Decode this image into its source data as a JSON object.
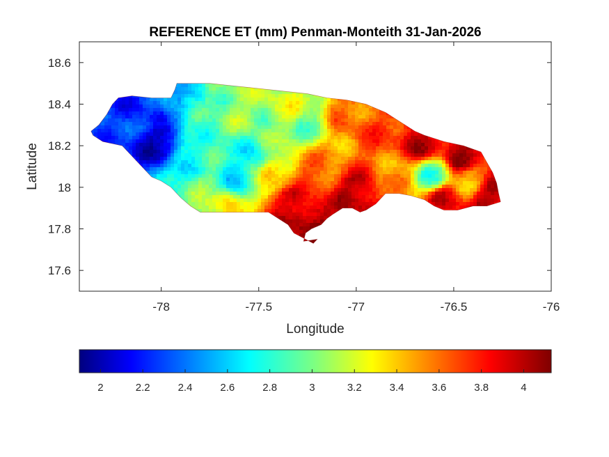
{
  "chart_data": {
    "type": "heatmap",
    "title": "REFERENCE ET (mm) Penman-Monteith 31-Jan-2026",
    "xlabel": "Longitude",
    "ylabel": "Latitude",
    "xlim": [
      -78.42,
      -76.0
    ],
    "ylim": [
      17.5,
      18.7
    ],
    "xticks": [
      -78,
      -77.5,
      -77,
      -76.5,
      -76
    ],
    "xtick_labels": [
      "-78",
      "-77.5",
      "-77",
      "-76.5",
      "-76"
    ],
    "yticks": [
      17.6,
      17.8,
      18,
      18.2,
      18.4,
      18.6
    ],
    "ytick_labels": [
      "17.6",
      "17.8",
      "18",
      "18.2",
      "18.4",
      "18.6"
    ],
    "colormap": "jet",
    "colorbar": {
      "location": "south",
      "range": [
        1.9,
        4.13
      ],
      "ticks": [
        2,
        2.2,
        2.4,
        2.6,
        2.8,
        3,
        3.2,
        3.4,
        3.6,
        3.8,
        4
      ],
      "tick_labels": [
        "2",
        "2.2",
        "2.4",
        "2.6",
        "2.8",
        "3",
        "3.2",
        "3.4",
        "3.6",
        "3.8",
        "4"
      ]
    },
    "region_outline_lonlat": [
      [
        -78.36,
        18.27
      ],
      [
        -78.32,
        18.3
      ],
      [
        -78.28,
        18.35
      ],
      [
        -78.25,
        18.4
      ],
      [
        -78.22,
        18.43
      ],
      [
        -78.15,
        18.44
      ],
      [
        -78.05,
        18.43
      ],
      [
        -77.95,
        18.43
      ],
      [
        -77.93,
        18.47
      ],
      [
        -77.92,
        18.5
      ],
      [
        -77.85,
        18.5
      ],
      [
        -77.75,
        18.5
      ],
      [
        -77.65,
        18.49
      ],
      [
        -77.55,
        18.48
      ],
      [
        -77.45,
        18.47
      ],
      [
        -77.35,
        18.46
      ],
      [
        -77.25,
        18.45
      ],
      [
        -77.15,
        18.43
      ],
      [
        -77.05,
        18.42
      ],
      [
        -76.95,
        18.4
      ],
      [
        -76.9,
        18.38
      ],
      [
        -76.85,
        18.36
      ],
      [
        -76.8,
        18.33
      ],
      [
        -76.75,
        18.3
      ],
      [
        -76.7,
        18.27
      ],
      [
        -76.65,
        18.25
      ],
      [
        -76.55,
        18.22
      ],
      [
        -76.45,
        18.2
      ],
      [
        -76.36,
        18.17
      ],
      [
        -76.33,
        18.12
      ],
      [
        -76.3,
        18.07
      ],
      [
        -76.28,
        18.02
      ],
      [
        -76.27,
        17.97
      ],
      [
        -76.26,
        17.93
      ],
      [
        -76.33,
        17.91
      ],
      [
        -76.4,
        17.91
      ],
      [
        -76.48,
        17.89
      ],
      [
        -76.55,
        17.89
      ],
      [
        -76.6,
        17.91
      ],
      [
        -76.65,
        17.94
      ],
      [
        -76.72,
        17.96
      ],
      [
        -76.78,
        17.97
      ],
      [
        -76.85,
        17.97
      ],
      [
        -76.9,
        17.92
      ],
      [
        -76.95,
        17.89
      ],
      [
        -76.98,
        17.88
      ],
      [
        -77.02,
        17.9
      ],
      [
        -77.07,
        17.9
      ],
      [
        -77.12,
        17.87
      ],
      [
        -77.15,
        17.85
      ],
      [
        -77.18,
        17.82
      ],
      [
        -77.23,
        17.8
      ],
      [
        -77.26,
        17.78
      ],
      [
        -77.27,
        17.74
      ],
      [
        -77.2,
        17.75
      ],
      [
        -77.22,
        17.73
      ],
      [
        -77.28,
        17.76
      ],
      [
        -77.32,
        17.78
      ],
      [
        -77.35,
        17.82
      ],
      [
        -77.4,
        17.85
      ],
      [
        -77.45,
        17.88
      ],
      [
        -77.5,
        17.88
      ],
      [
        -77.6,
        17.88
      ],
      [
        -77.7,
        17.88
      ],
      [
        -77.8,
        17.88
      ],
      [
        -77.85,
        17.91
      ],
      [
        -77.9,
        17.95
      ],
      [
        -77.95,
        18.0
      ],
      [
        -78.0,
        18.03
      ],
      [
        -78.05,
        18.05
      ],
      [
        -78.1,
        18.1
      ],
      [
        -78.15,
        18.15
      ],
      [
        -78.2,
        18.2
      ],
      [
        -78.25,
        18.21
      ],
      [
        -78.3,
        18.22
      ],
      [
        -78.35,
        18.25
      ]
    ],
    "value_field_anchors": [
      {
        "lon": -78.25,
        "lat": 18.3,
        "value": 2.35
      },
      {
        "lon": -78.15,
        "lat": 18.38,
        "value": 2.25
      },
      {
        "lon": -78.02,
        "lat": 18.22,
        "value": 2.05
      },
      {
        "lon": -78.05,
        "lat": 18.35,
        "value": 2.3
      },
      {
        "lon": -77.92,
        "lat": 18.4,
        "value": 2.55
      },
      {
        "lon": -77.85,
        "lat": 18.45,
        "value": 2.7
      },
      {
        "lon": -77.78,
        "lat": 18.3,
        "value": 2.9
      },
      {
        "lon": -77.7,
        "lat": 18.42,
        "value": 3.0
      },
      {
        "lon": -77.6,
        "lat": 18.38,
        "value": 3.1
      },
      {
        "lon": -77.85,
        "lat": 18.1,
        "value": 2.8
      },
      {
        "lon": -77.75,
        "lat": 18.0,
        "value": 3.0
      },
      {
        "lon": -77.62,
        "lat": 18.05,
        "value": 2.7
      },
      {
        "lon": -77.55,
        "lat": 18.15,
        "value": 2.8
      },
      {
        "lon": -77.7,
        "lat": 17.92,
        "value": 3.3
      },
      {
        "lon": -77.45,
        "lat": 18.25,
        "value": 3.0
      },
      {
        "lon": -77.35,
        "lat": 18.38,
        "value": 3.2
      },
      {
        "lon": -77.25,
        "lat": 18.3,
        "value": 3.0
      },
      {
        "lon": -77.4,
        "lat": 18.05,
        "value": 3.4
      },
      {
        "lon": -77.35,
        "lat": 17.93,
        "value": 3.9
      },
      {
        "lon": -77.25,
        "lat": 17.83,
        "value": 4.05
      },
      {
        "lon": -77.2,
        "lat": 18.05,
        "value": 3.7
      },
      {
        "lon": -77.05,
        "lat": 18.35,
        "value": 3.6
      },
      {
        "lon": -77.1,
        "lat": 18.15,
        "value": 3.5
      },
      {
        "lon": -77.0,
        "lat": 17.98,
        "value": 4.0
      },
      {
        "lon": -76.9,
        "lat": 18.25,
        "value": 3.7
      },
      {
        "lon": -76.8,
        "lat": 18.05,
        "value": 3.5
      },
      {
        "lon": -76.65,
        "lat": 18.22,
        "value": 4.0
      },
      {
        "lon": -76.6,
        "lat": 18.05,
        "value": 2.9
      },
      {
        "lon": -76.55,
        "lat": 17.95,
        "value": 3.9
      },
      {
        "lon": -76.45,
        "lat": 18.15,
        "value": 4.05
      },
      {
        "lon": -76.42,
        "lat": 18.03,
        "value": 3.5
      },
      {
        "lon": -76.32,
        "lat": 17.95,
        "value": 4.0
      }
    ]
  }
}
